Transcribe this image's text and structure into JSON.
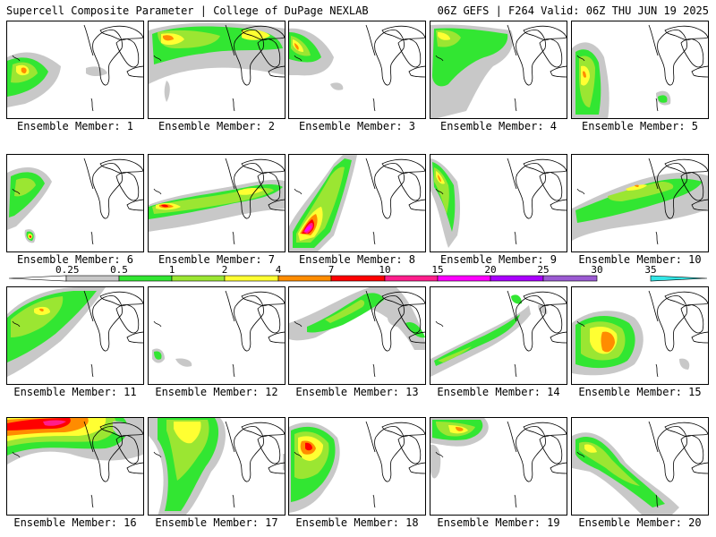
{
  "header": {
    "left": "Supercell Composite Parameter | College of DuPage NEXLAB",
    "right": "06Z GEFS | F264 Valid: 06Z THU JUN 19 2025"
  },
  "members": [
    {
      "label": "Ensemble Member: 1"
    },
    {
      "label": "Ensemble Member: 2"
    },
    {
      "label": "Ensemble Member: 3"
    },
    {
      "label": "Ensemble Member: 4"
    },
    {
      "label": "Ensemble Member: 5"
    },
    {
      "label": "Ensemble Member: 6"
    },
    {
      "label": "Ensemble Member: 7"
    },
    {
      "label": "Ensemble Member: 8"
    },
    {
      "label": "Ensemble Member: 9"
    },
    {
      "label": "Ensemble Member: 10"
    },
    {
      "label": "Ensemble Member: 11"
    },
    {
      "label": "Ensemble Member: 12"
    },
    {
      "label": "Ensemble Member: 13"
    },
    {
      "label": "Ensemble Member: 14"
    },
    {
      "label": "Ensemble Member: 15"
    },
    {
      "label": "Ensemble Member: 16"
    },
    {
      "label": "Ensemble Member: 17"
    },
    {
      "label": "Ensemble Member: 18"
    },
    {
      "label": "Ensemble Member: 19"
    },
    {
      "label": "Ensemble Member: 20"
    }
  ],
  "colorbar": {
    "labels": [
      "0.25",
      "0.5",
      "1",
      "2",
      "4",
      "7",
      "10",
      "15",
      "20",
      "25",
      "30",
      "35"
    ],
    "colors": [
      "#c8c8c8",
      "#32e632",
      "#9be632",
      "#ffff32",
      "#ff8c00",
      "#ff0000",
      "#ff1e8c",
      "#ff00ff",
      "#aa00ff",
      "#9b5ad2",
      "#32e6e6"
    ]
  }
}
